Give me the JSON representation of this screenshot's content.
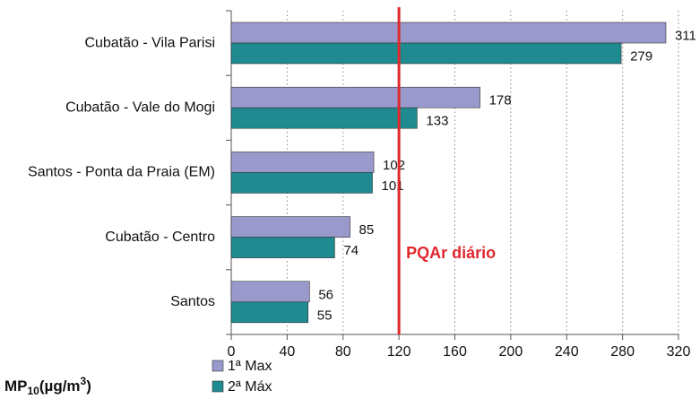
{
  "chart_data": {
    "type": "bar",
    "orientation": "horizontal",
    "categories": [
      "Cubatão - Vila Parisi",
      "Cubatão - Vale do Mogi",
      "Santos - Ponta da Praia (EM)",
      "Cubatão - Centro",
      "Santos"
    ],
    "series": [
      {
        "name": "1ª Max",
        "color": "#9999cc",
        "values": [
          311,
          178,
          102,
          85,
          56
        ]
      },
      {
        "name": "2ª Máx",
        "color": "#1f8a8f",
        "values": [
          279,
          133,
          101,
          74,
          55
        ]
      }
    ],
    "xlim": [
      0,
      320
    ],
    "xticks": [
      0,
      40,
      80,
      120,
      160,
      200,
      240,
      280,
      320
    ],
    "grid": true,
    "reference_lines": [
      {
        "value": 120,
        "label": "PQAr diário",
        "color": "#e0282e"
      }
    ],
    "x_label": {
      "main": "MP",
      "sub": "10",
      "unit": "(µg/m",
      "sup": "3",
      "end": ")"
    }
  }
}
